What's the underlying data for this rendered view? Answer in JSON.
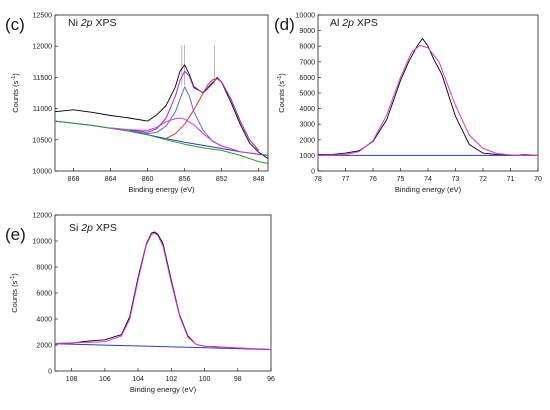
{
  "chart_data": [
    {
      "type": "line",
      "panel_label": "(c)",
      "title_parts": [
        "Ni ",
        "2p",
        " XPS"
      ],
      "xlabel": "Binding energy (eV)",
      "ylabel_parts": [
        "Counts (s",
        "-1",
        ")"
      ],
      "xlim": [
        870,
        847
      ],
      "ylim": [
        10000,
        12500
      ],
      "xticks": [
        868,
        864,
        860,
        856,
        852,
        848
      ],
      "yticks": [
        10000,
        10500,
        11000,
        11500,
        12000,
        12500
      ],
      "peak_markers": [
        856.3,
        856.0,
        852.8
      ],
      "series": [
        {
          "role": "measured",
          "color": "#000000",
          "x": [
            870,
            868,
            866,
            864,
            862,
            860,
            859,
            858,
            857,
            856.5,
            856,
            855.5,
            855,
            854,
            853,
            852.5,
            852,
            851,
            850,
            849,
            848,
            847
          ],
          "y": [
            10950,
            10980,
            10940,
            10890,
            10850,
            10800,
            10900,
            11050,
            11350,
            11600,
            11700,
            11550,
            11350,
            11250,
            11400,
            11500,
            11420,
            11100,
            10750,
            10450,
            10300,
            10200
          ]
        },
        {
          "role": "background",
          "color": "#2a3fbf",
          "x": [
            870,
            866,
            862,
            860,
            858,
            856,
            854,
            852,
            850,
            848,
            847
          ],
          "y": [
            10800,
            10730,
            10640,
            10580,
            10520,
            10460,
            10410,
            10360,
            10310,
            10270,
            10250
          ]
        },
        {
          "role": "background",
          "color": "#2a9a2a",
          "x": [
            870,
            866,
            862,
            860,
            858,
            856,
            854,
            852,
            850,
            848,
            847
          ],
          "y": [
            10800,
            10730,
            10640,
            10580,
            10500,
            10430,
            10370,
            10330,
            10250,
            10150,
            10120
          ]
        },
        {
          "role": "fit component",
          "color": "#5a6ee0",
          "x": [
            862,
            860,
            859,
            858,
            857,
            856.5,
            856,
            855.5,
            855,
            854,
            853,
            852,
            850,
            848
          ],
          "y": [
            10650,
            10600,
            10620,
            10720,
            10950,
            11150,
            11350,
            11200,
            10950,
            10650,
            10480,
            10400,
            10310,
            10270
          ]
        },
        {
          "role": "fit component",
          "color": "#d836d8",
          "x": [
            864,
            862,
            860,
            859,
            858,
            857,
            856.5,
            856,
            855,
            854,
            853,
            852,
            850,
            848
          ],
          "y": [
            10690,
            10660,
            10650,
            10700,
            10790,
            10840,
            10850,
            10830,
            10740,
            10600,
            10480,
            10400,
            10310,
            10270
          ]
        },
        {
          "role": "fit component",
          "color": "#e03a2a",
          "x": [
            858,
            857,
            856,
            855,
            854,
            853.5,
            853,
            852.5,
            852,
            851,
            850,
            849,
            848
          ],
          "y": [
            10520,
            10600,
            10750,
            10980,
            11250,
            11380,
            11460,
            11480,
            11420,
            11150,
            10800,
            10500,
            10330
          ]
        },
        {
          "role": "fit envelope",
          "color": "#9b2fd0",
          "x": [
            862,
            860,
            859,
            858,
            857,
            856.5,
            856,
            855.5,
            855,
            854,
            853,
            852.5,
            852,
            851,
            850,
            849,
            848
          ],
          "y": [
            10660,
            10620,
            10680,
            10850,
            11200,
            11450,
            11600,
            11520,
            11330,
            11260,
            11420,
            11480,
            11430,
            11150,
            10800,
            10500,
            10330
          ]
        }
      ]
    },
    {
      "type": "line",
      "panel_label": "(d)",
      "title_parts": [
        "Al ",
        "2p",
        " XPS"
      ],
      "xlabel": "Binding energy (eV)",
      "ylabel_parts": [
        "Counts (s",
        "-1",
        ")"
      ],
      "xlim": [
        78,
        70
      ],
      "ylim": [
        0,
        10000
      ],
      "xticks": [
        78,
        77,
        76,
        75,
        74,
        73,
        72,
        71,
        70
      ],
      "yticks": [
        0,
        1000,
        2000,
        3000,
        4000,
        5000,
        6000,
        7000,
        8000,
        9000,
        10000
      ],
      "series": [
        {
          "role": "measured",
          "color": "#000000",
          "x": [
            78,
            77.5,
            77,
            76.5,
            76,
            75.5,
            75,
            74.7,
            74.4,
            74.2,
            74,
            73.8,
            73.5,
            73,
            72.5,
            72,
            71.5,
            71,
            70.5,
            70
          ],
          "y": [
            1050,
            1050,
            1150,
            1300,
            1900,
            3300,
            5800,
            7000,
            8000,
            8500,
            8000,
            7200,
            6200,
            3500,
            1700,
            1150,
            1050,
            1000,
            1050,
            1000
          ]
        },
        {
          "role": "background",
          "color": "#2a3fbf",
          "x": [
            78,
            70
          ],
          "y": [
            1000,
            1000
          ]
        },
        {
          "role": "fit envelope",
          "color": "#d836d8",
          "x": [
            78,
            77,
            76.5,
            76,
            75.5,
            75,
            74.6,
            74.3,
            74,
            73.6,
            73,
            72.5,
            72,
            71.5,
            71,
            70
          ],
          "y": [
            1000,
            1060,
            1250,
            1950,
            3600,
            6000,
            7600,
            8050,
            7900,
            7000,
            4200,
            2300,
            1450,
            1120,
            1030,
            1000
          ]
        }
      ]
    },
    {
      "type": "line",
      "panel_label": "(e)",
      "title_parts": [
        "Si ",
        "2p",
        " XPS"
      ],
      "xlabel": "Binding energy (eV)",
      "ylabel_parts": [
        "Counts (s",
        "-1",
        ")"
      ],
      "xlim": [
        109,
        96
      ],
      "ylim": [
        0,
        12000
      ],
      "xticks": [
        108,
        106,
        104,
        102,
        100,
        98,
        96
      ],
      "yticks": [
        0,
        2000,
        4000,
        6000,
        8000,
        10000,
        12000
      ],
      "series": [
        {
          "role": "measured",
          "color": "#000000",
          "x": [
            109,
            108,
            107,
            106,
            105,
            104.5,
            104,
            103.5,
            103.2,
            103,
            102.8,
            102.5,
            102,
            101.5,
            101,
            100.5,
            100,
            99,
            98,
            97,
            96
          ],
          "y": [
            2100,
            2150,
            2300,
            2400,
            2800,
            4200,
            7200,
            9800,
            10600,
            10700,
            10500,
            9800,
            7000,
            4300,
            2700,
            2050,
            1900,
            1850,
            1750,
            1700,
            1650
          ]
        },
        {
          "role": "background",
          "color": "#2a3fbf",
          "x": [
            109,
            96
          ],
          "y": [
            2100,
            1650
          ]
        },
        {
          "role": "fit envelope",
          "color": "#d836d8",
          "x": [
            109,
            106,
            105,
            104.5,
            104,
            103.5,
            103.2,
            103,
            102.8,
            102.5,
            102,
            101.5,
            101,
            100.5,
            100,
            98,
            96
          ],
          "y": [
            2120,
            2250,
            2700,
            4000,
            7000,
            9700,
            10500,
            10600,
            10400,
            9600,
            6800,
            4200,
            2600,
            2050,
            1900,
            1780,
            1660
          ]
        }
      ]
    }
  ]
}
